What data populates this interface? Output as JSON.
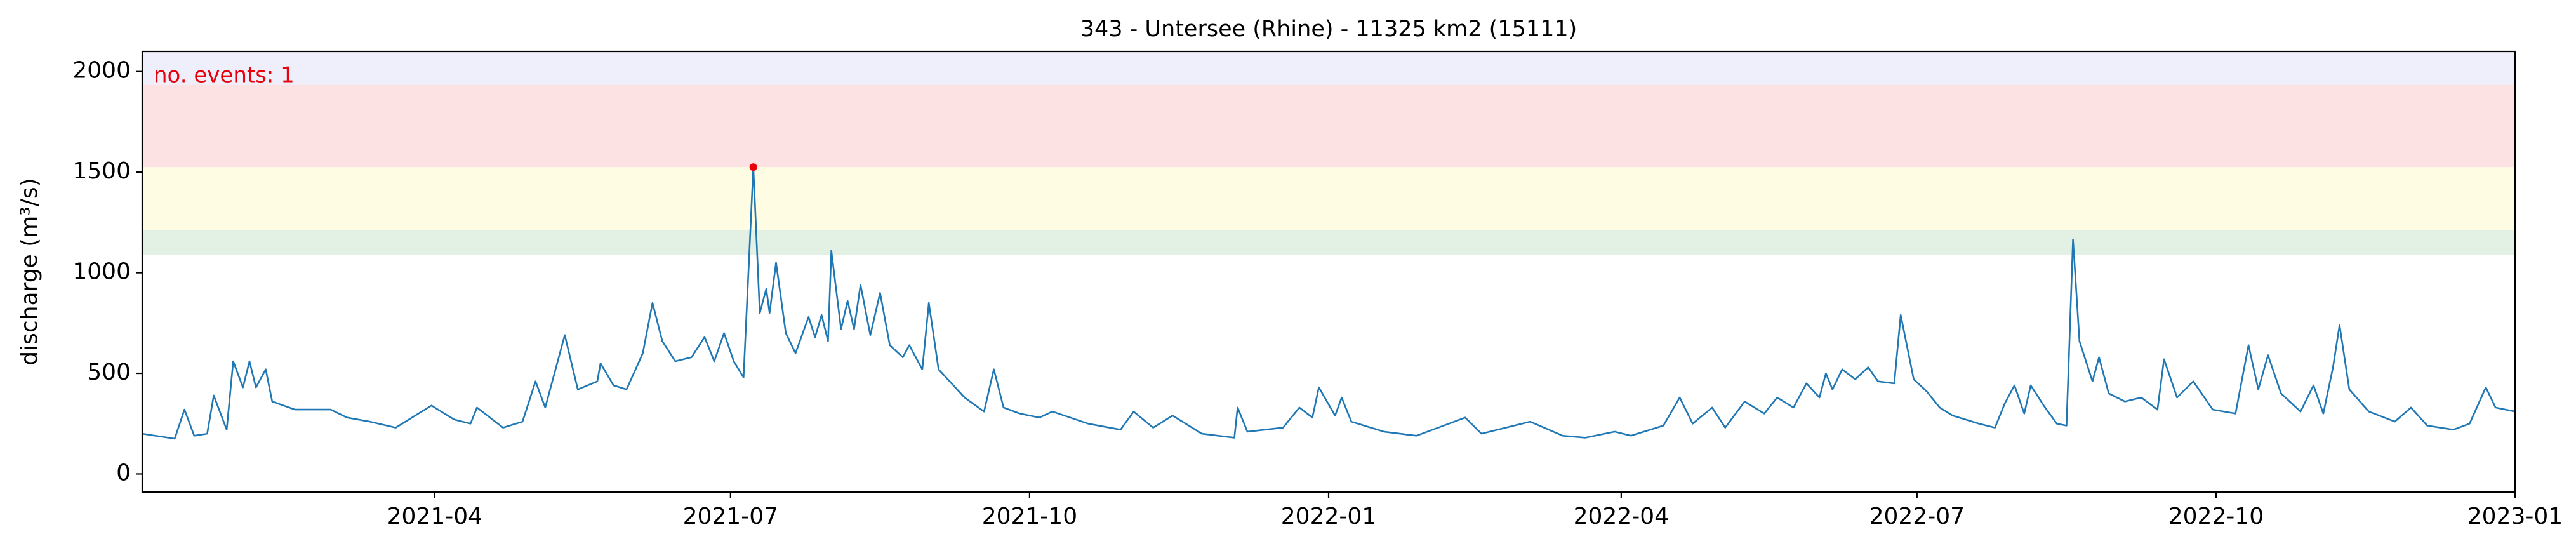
{
  "chart_data": {
    "type": "line",
    "title": "343 - Untersee (Rhine) - 11325 km2 (15111)",
    "ylabel": "discharge (m³/s)",
    "annotation": {
      "text": "no. events: 1",
      "color": "#e8000b"
    },
    "xlim": [
      "2021-01",
      "2023-01"
    ],
    "xticks": [
      "2021-04",
      "2021-07",
      "2021-10",
      "2022-01",
      "2022-04",
      "2022-07",
      "2022-10",
      "2023-01"
    ],
    "ylim": [
      -90,
      2100
    ],
    "yticks": [
      0,
      500,
      1000,
      1500,
      2000
    ],
    "bands": [
      {
        "from": 1090,
        "to": 1213,
        "color": "#e3f0e4"
      },
      {
        "from": 1213,
        "to": 1525,
        "color": "#fefde3"
      },
      {
        "from": 1525,
        "to": 1934,
        "color": "#fde2e4"
      },
      {
        "from": 1934,
        "to": 2100,
        "color": "#efeefb"
      }
    ],
    "x": [
      "2021-01-01",
      "2021-01-11",
      "2021-01-14",
      "2021-01-17",
      "2021-01-21",
      "2021-01-23",
      "2021-01-27",
      "2021-01-29",
      "2021-02-01",
      "2021-02-03",
      "2021-02-05",
      "2021-02-08",
      "2021-02-10",
      "2021-02-17",
      "2021-02-28",
      "2021-03-05",
      "2021-03-12",
      "2021-03-20",
      "2021-03-31",
      "2021-04-07",
      "2021-04-12",
      "2021-04-14",
      "2021-04-22",
      "2021-04-28",
      "2021-05-02",
      "2021-05-05",
      "2021-05-11",
      "2021-05-15",
      "2021-05-21",
      "2021-05-22",
      "2021-05-26",
      "2021-05-30",
      "2021-06-04",
      "2021-06-07",
      "2021-06-10",
      "2021-06-14",
      "2021-06-19",
      "2021-06-23",
      "2021-06-26",
      "2021-06-29",
      "2021-07-02",
      "2021-07-05",
      "2021-07-08",
      "2021-07-10",
      "2021-07-12",
      "2021-07-13",
      "2021-07-15",
      "2021-07-18",
      "2021-07-21",
      "2021-07-25",
      "2021-07-27",
      "2021-07-29",
      "2021-07-31",
      "2021-08-01",
      "2021-08-04",
      "2021-08-06",
      "2021-08-08",
      "2021-08-10",
      "2021-08-13",
      "2021-08-16",
      "2021-08-19",
      "2021-08-23",
      "2021-08-25",
      "2021-08-29",
      "2021-08-31",
      "2021-09-03",
      "2021-09-11",
      "2021-09-17",
      "2021-09-20",
      "2021-09-23",
      "2021-09-28",
      "2021-10-04",
      "2021-10-08",
      "2021-10-19",
      "2021-10-29",
      "2021-11-02",
      "2021-11-08",
      "2021-11-14",
      "2021-11-23",
      "2021-12-03",
      "2021-12-04",
      "2021-12-07",
      "2021-12-18",
      "2021-12-23",
      "2021-12-27",
      "2021-12-29",
      "2022-01-03",
      "2022-01-05",
      "2022-01-08",
      "2022-01-18",
      "2022-01-28",
      "2022-02-07",
      "2022-02-12",
      "2022-02-17",
      "2022-03-04",
      "2022-03-14",
      "2022-03-21",
      "2022-03-30",
      "2022-04-04",
      "2022-04-14",
      "2022-04-19",
      "2022-04-23",
      "2022-04-29",
      "2022-05-03",
      "2022-05-09",
      "2022-05-15",
      "2022-05-19",
      "2022-05-24",
      "2022-05-28",
      "2022-06-01",
      "2022-06-03",
      "2022-06-05",
      "2022-06-08",
      "2022-06-12",
      "2022-06-16",
      "2022-06-19",
      "2022-06-24",
      "2022-06-26",
      "2022-06-30",
      "2022-07-04",
      "2022-07-08",
      "2022-07-12",
      "2022-07-16",
      "2022-07-20",
      "2022-07-25",
      "2022-07-28",
      "2022-07-31",
      "2022-08-03",
      "2022-08-05",
      "2022-08-09",
      "2022-08-13",
      "2022-08-16",
      "2022-08-18",
      "2022-08-20",
      "2022-08-24",
      "2022-08-26",
      "2022-08-29",
      "2022-09-03",
      "2022-09-08",
      "2022-09-13",
      "2022-09-15",
      "2022-09-19",
      "2022-09-24",
      "2022-09-30",
      "2022-10-07",
      "2022-10-11",
      "2022-10-14",
      "2022-10-17",
      "2022-10-21",
      "2022-10-27",
      "2022-10-31",
      "2022-11-03",
      "2022-11-06",
      "2022-11-08",
      "2022-11-11",
      "2022-11-17",
      "2022-11-25",
      "2022-11-30",
      "2022-12-05",
      "2022-12-13",
      "2022-12-18",
      "2022-12-23",
      "2022-12-26",
      "2023-01-01"
    ],
    "series": [
      {
        "color": "#1f77b4",
        "values": [
          200,
          175,
          320,
          190,
          200,
          390,
          220,
          560,
          430,
          560,
          430,
          520,
          360,
          320,
          320,
          280,
          260,
          230,
          340,
          270,
          250,
          330,
          230,
          260,
          460,
          330,
          690,
          420,
          460,
          550,
          440,
          420,
          600,
          850,
          660,
          560,
          580,
          680,
          560,
          700,
          560,
          480,
          1525,
          800,
          920,
          800,
          1050,
          700,
          600,
          780,
          680,
          790,
          660,
          1110,
          720,
          860,
          720,
          940,
          690,
          900,
          640,
          580,
          640,
          520,
          850,
          520,
          380,
          310,
          520,
          330,
          300,
          280,
          310,
          250,
          220,
          310,
          230,
          290,
          200,
          180,
          330,
          210,
          230,
          330,
          280,
          430,
          290,
          380,
          260,
          210,
          190,
          250,
          280,
          200,
          260,
          190,
          180,
          210,
          190,
          240,
          380,
          250,
          330,
          230,
          360,
          300,
          380,
          330,
          450,
          380,
          500,
          420,
          520,
          470,
          530,
          460,
          450,
          790,
          470,
          410,
          330,
          290,
          270,
          250,
          230,
          350,
          440,
          300,
          440,
          340,
          250,
          240,
          1165,
          660,
          460,
          580,
          400,
          360,
          380,
          320,
          570,
          380,
          460,
          320,
          300,
          640,
          420,
          590,
          400,
          310,
          440,
          300,
          530,
          740,
          420,
          310,
          260,
          330,
          240,
          220,
          250,
          430,
          330,
          310
        ]
      }
    ],
    "events": {
      "x": [
        "2021-07-08"
      ],
      "values": [
        1525
      ],
      "color": "#e8000b"
    }
  }
}
